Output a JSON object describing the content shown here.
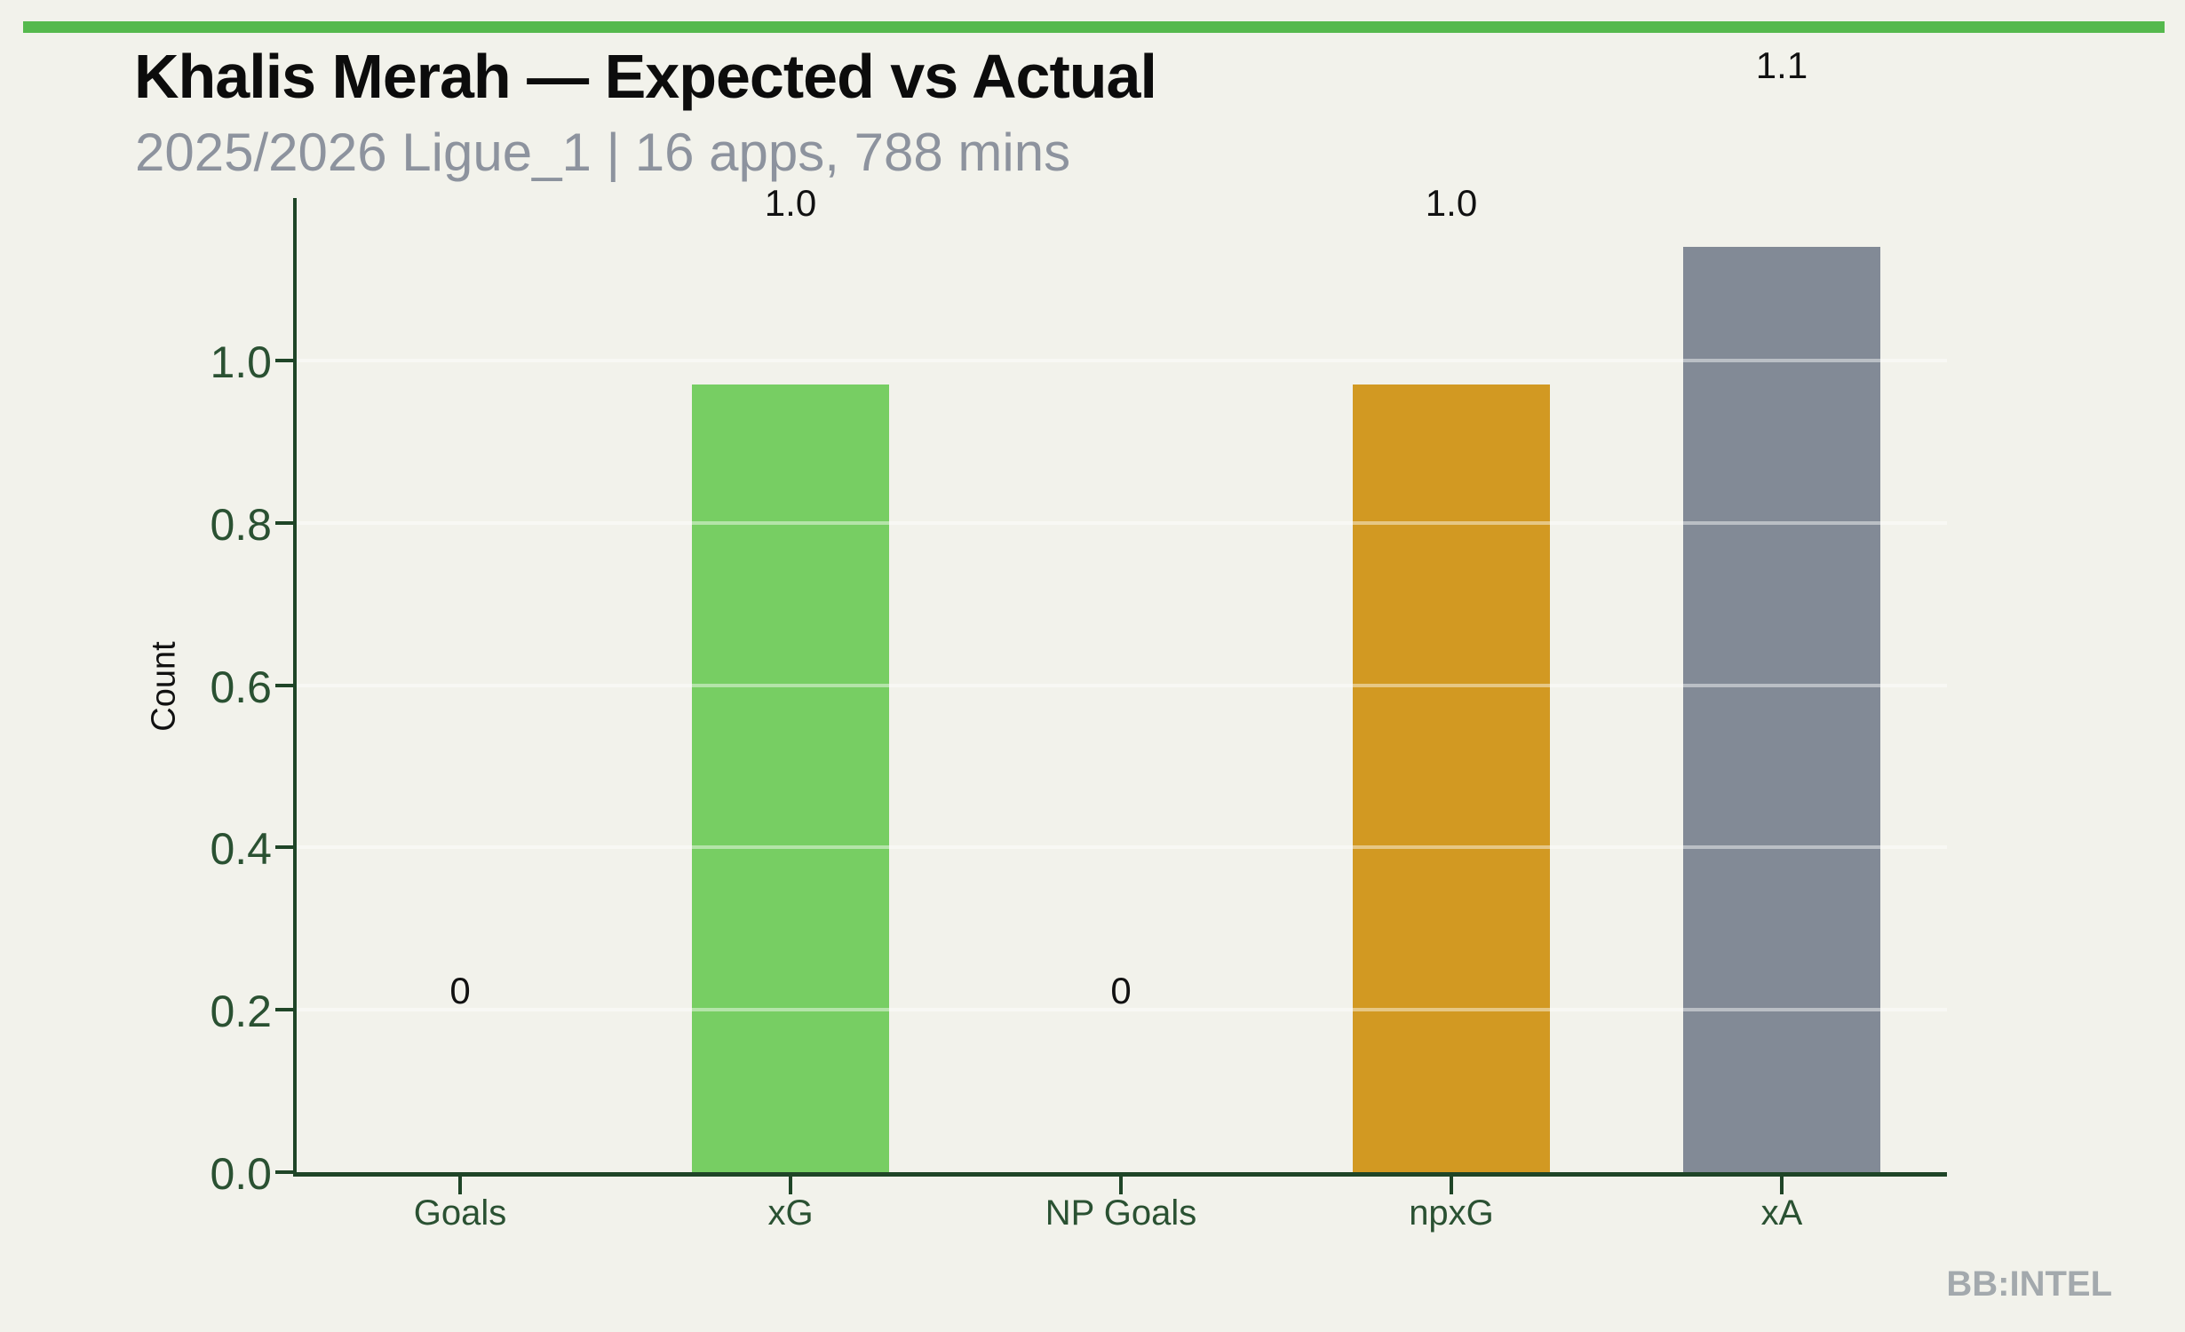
{
  "figure": {
    "title": "Khalis Merah — Expected vs Actual",
    "subtitle": "2025/2026 Ligue_1 | 16 apps, 788 mins",
    "watermark": "BB:INTEL",
    "background_color": "#f2f2eb",
    "accent_bar_color": "#55b94d"
  },
  "chart_data": {
    "type": "bar",
    "title": "Khalis Merah — Expected vs Actual",
    "subtitle": "2025/2026 Ligue_1 | 16 apps, 788 mins",
    "xlabel": "",
    "ylabel": "Count",
    "ylim": [
      0,
      1.2
    ],
    "ytick_values": [
      0.0,
      0.2,
      0.4,
      0.6,
      0.8,
      1.0
    ],
    "ytick_labels": [
      "0.0",
      "0.2",
      "0.4",
      "0.6",
      "0.8",
      "1.0"
    ],
    "grid": true,
    "legend": false,
    "categories": [
      "Goals",
      "xG",
      "NP Goals",
      "npxG",
      "xA"
    ],
    "values": [
      0,
      0.97,
      0,
      0.97,
      1.14
    ],
    "bar_labels": [
      "0",
      "1.0",
      "0",
      "1.0",
      "1.1"
    ],
    "bar_colors": [
      "#77ce63",
      "#77ce63",
      "#d29922",
      "#d29922",
      "#828a96"
    ],
    "axis_color": "#1f4527",
    "tick_label_color": "#2a5132",
    "bar_label_color": "#111111",
    "gridline_color": "rgba(255,255,255,0.45)"
  }
}
